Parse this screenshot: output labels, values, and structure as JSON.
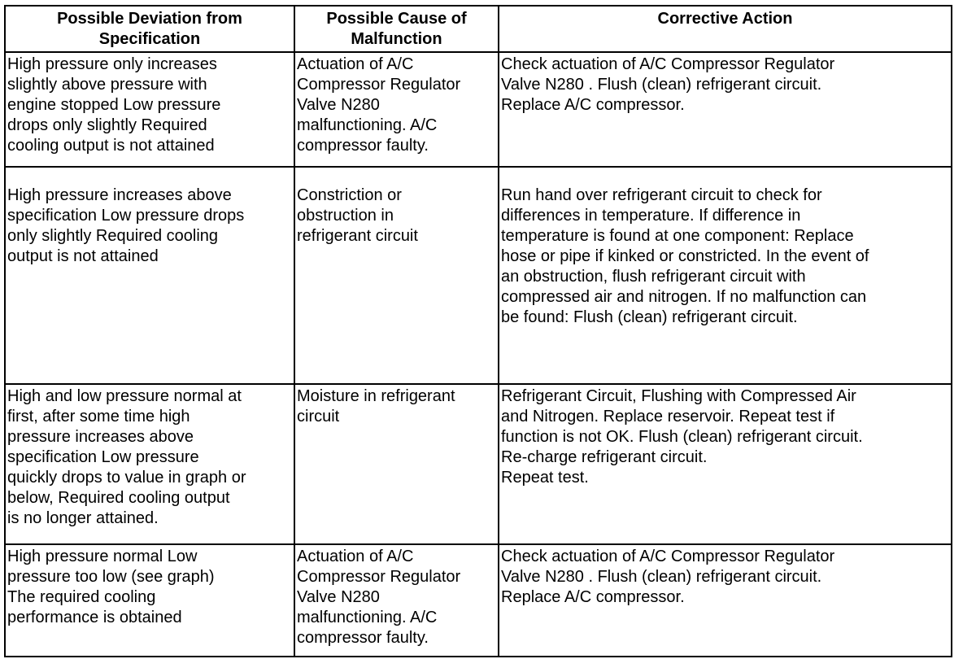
{
  "headers": [
    "Possible Deviation from\nSpecification",
    "Possible Cause of\nMalfunction",
    "Corrective Action"
  ],
  "rows": [
    {
      "deviation": "High pressure only increases\nslightly above pressure with\nengine stopped Low pressure\ndrops only slightly Required\ncooling output is not attained",
      "cause": "Actuation of A/C\nCompressor Regulator\nValve N280\nmalfunctioning. A/C\ncompressor faulty.",
      "action": "Check actuation of A/C Compressor Regulator\nValve N280 . Flush (clean) refrigerant circuit.\n Replace A/C compressor."
    },
    {
      "deviation": "High pressure increases above\nspecification Low pressure drops\nonly slightly Required cooling\noutput is not attained",
      "cause": "Constriction or\nobstruction in\nrefrigerant circuit",
      "action": "Run hand over refrigerant circuit to check for\ndifferences in temperature. If difference in\ntemperature is found at one component: Replace\nhose or pipe if kinked or constricted. In the event of\nan obstruction, flush refrigerant circuit with\ncompressed air and nitrogen. If no malfunction can\nbe found: Flush (clean) refrigerant circuit."
    },
    {
      "deviation": "High and low pressure normal at\nfirst, after some time high\npressure increases above\nspecification Low pressure\nquickly drops to value in graph or\nbelow, Required cooling output\nis no longer attained.",
      "cause": "Moisture in refrigerant\ncircuit",
      "action": "Refrigerant Circuit, Flushing with Compressed Air\nand Nitrogen. Replace reservoir. Repeat test if\nfunction is not OK. Flush (clean) refrigerant circuit.\n Re-charge refrigerant circuit.\n Repeat test."
    },
    {
      "deviation": "High pressure normal Low\npressure too low (see graph)\nThe required cooling\nperformance is obtained",
      "cause": "Actuation of A/C\nCompressor Regulator\nValve N280\nmalfunctioning. A/C\ncompressor faulty.",
      "action": "Check actuation of A/C Compressor Regulator\nValve N280 . Flush (clean) refrigerant circuit.\n Replace A/C compressor."
    }
  ]
}
